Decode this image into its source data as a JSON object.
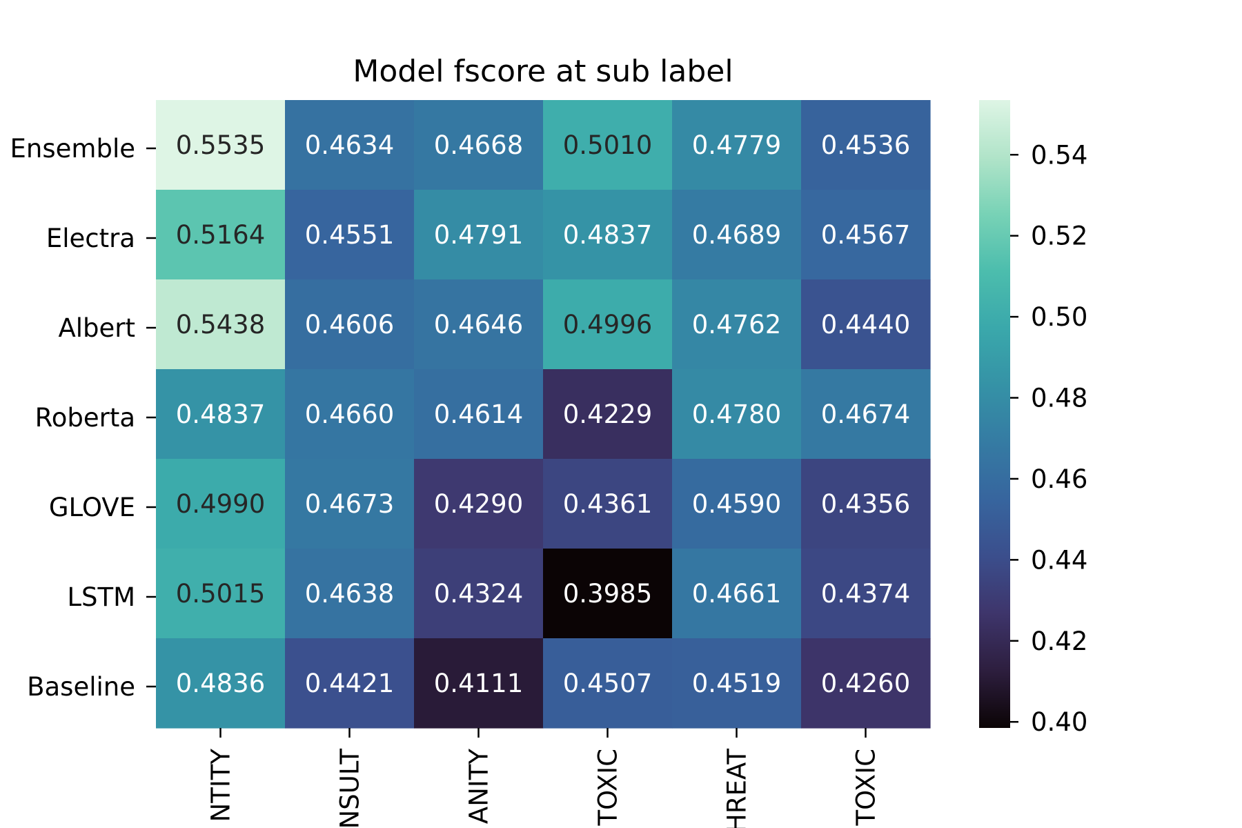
{
  "chart_data": {
    "type": "heatmap",
    "title": "Model fscore at sub label",
    "rows": [
      "Ensemble",
      "Electra",
      "Albert",
      "Roberta",
      "GLOVE",
      "LSTM",
      "Baseline"
    ],
    "columns": [
      "NTITY",
      "NSULT",
      "ANITY",
      "TOXIC",
      "HREAT",
      "TOXIC"
    ],
    "values": [
      [
        0.5535,
        0.4634,
        0.4668,
        0.501,
        0.4779,
        0.4536
      ],
      [
        0.5164,
        0.4551,
        0.4791,
        0.4837,
        0.4689,
        0.4567
      ],
      [
        0.5438,
        0.4606,
        0.4646,
        0.4996,
        0.4762,
        0.444
      ],
      [
        0.4837,
        0.466,
        0.4614,
        0.4229,
        0.478,
        0.4674
      ],
      [
        0.499,
        0.4673,
        0.429,
        0.4361,
        0.459,
        0.4356
      ],
      [
        0.5015,
        0.4638,
        0.4324,
        0.3985,
        0.4661,
        0.4374
      ],
      [
        0.4836,
        0.4421,
        0.4111,
        0.4507,
        0.4519,
        0.426
      ]
    ],
    "value_format": "4 decimals",
    "colormap": "mako",
    "colorbar": {
      "range": [
        0.3985,
        0.5535
      ],
      "ticks": [
        0.4,
        0.42,
        0.44,
        0.46,
        0.48,
        0.5,
        0.52,
        0.54
      ],
      "tick_labels": [
        "0.40",
        "0.42",
        "0.44",
        "0.46",
        "0.48",
        "0.50",
        "0.52",
        "0.54"
      ],
      "colors": [
        "#0b0405",
        "#2d1e3e",
        "#3e356b",
        "#3b4e8c",
        "#37659e",
        "#357ba3",
        "#3592a6",
        "#3aa8ab",
        "#4cbdad",
        "#78d2b6",
        "#b1e4c9",
        "#def5e5"
      ]
    },
    "xlabel": "",
    "ylabel": ""
  }
}
